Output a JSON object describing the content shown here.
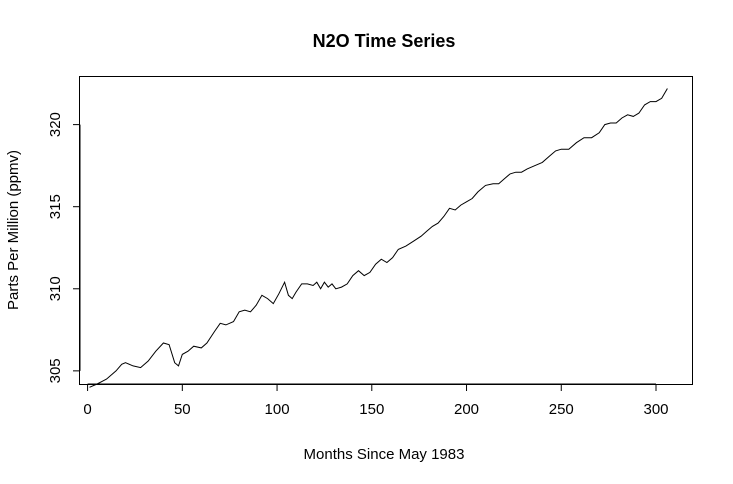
{
  "chart_data": {
    "type": "line",
    "title": "N2O Time Series",
    "xlabel": "Months Since May 1983",
    "ylabel": "Parts Per Million (ppmv)",
    "xlim": [
      -4,
      319
    ],
    "ylim": [
      304.2,
      322.9
    ],
    "xticks": [
      0,
      50,
      100,
      150,
      200,
      250,
      300
    ],
    "yticks": [
      305,
      310,
      315,
      320
    ],
    "grid": false,
    "legend": "none",
    "series": [
      {
        "color": "#000000",
        "points": [
          [
            1,
            304.0
          ],
          [
            5,
            304.2
          ],
          [
            10,
            304.5
          ],
          [
            15,
            305.0
          ],
          [
            18,
            305.4
          ],
          [
            20,
            305.5
          ],
          [
            24,
            305.3
          ],
          [
            28,
            305.2
          ],
          [
            32,
            305.6
          ],
          [
            36,
            306.2
          ],
          [
            40,
            306.7
          ],
          [
            43,
            306.6
          ],
          [
            46,
            305.5
          ],
          [
            48,
            305.3
          ],
          [
            50,
            306.0
          ],
          [
            53,
            306.2
          ],
          [
            56,
            306.5
          ],
          [
            60,
            306.4
          ],
          [
            63,
            306.7
          ],
          [
            67,
            307.4
          ],
          [
            70,
            307.9
          ],
          [
            73,
            307.8
          ],
          [
            77,
            308.0
          ],
          [
            80,
            308.6
          ],
          [
            83,
            308.7
          ],
          [
            86,
            308.6
          ],
          [
            89,
            309.0
          ],
          [
            92,
            309.6
          ],
          [
            95,
            309.4
          ],
          [
            98,
            309.1
          ],
          [
            101,
            309.7
          ],
          [
            104,
            310.4
          ],
          [
            106,
            309.6
          ],
          [
            108,
            309.4
          ],
          [
            110,
            309.8
          ],
          [
            113,
            310.3
          ],
          [
            116,
            310.3
          ],
          [
            119,
            310.2
          ],
          [
            121,
            310.4
          ],
          [
            123,
            310.0
          ],
          [
            125,
            310.4
          ],
          [
            127,
            310.1
          ],
          [
            129,
            310.3
          ],
          [
            131,
            310.0
          ],
          [
            134,
            310.1
          ],
          [
            137,
            310.3
          ],
          [
            140,
            310.8
          ],
          [
            143,
            311.1
          ],
          [
            146,
            310.8
          ],
          [
            149,
            311.0
          ],
          [
            152,
            311.5
          ],
          [
            155,
            311.8
          ],
          [
            158,
            311.6
          ],
          [
            161,
            311.9
          ],
          [
            164,
            312.4
          ],
          [
            168,
            312.6
          ],
          [
            172,
            312.9
          ],
          [
            176,
            313.2
          ],
          [
            179,
            313.5
          ],
          [
            182,
            313.8
          ],
          [
            185,
            314.0
          ],
          [
            188,
            314.4
          ],
          [
            191,
            314.9
          ],
          [
            194,
            314.8
          ],
          [
            197,
            315.1
          ],
          [
            200,
            315.3
          ],
          [
            203,
            315.5
          ],
          [
            206,
            315.9
          ],
          [
            210,
            316.3
          ],
          [
            214,
            316.4
          ],
          [
            217,
            316.4
          ],
          [
            220,
            316.7
          ],
          [
            223,
            317.0
          ],
          [
            226,
            317.1
          ],
          [
            229,
            317.1
          ],
          [
            232,
            317.3
          ],
          [
            236,
            317.5
          ],
          [
            240,
            317.7
          ],
          [
            244,
            318.1
          ],
          [
            247,
            318.4
          ],
          [
            250,
            318.5
          ],
          [
            254,
            318.5
          ],
          [
            258,
            318.9
          ],
          [
            262,
            319.2
          ],
          [
            266,
            319.2
          ],
          [
            270,
            319.5
          ],
          [
            273,
            320.0
          ],
          [
            276,
            320.1
          ],
          [
            279,
            320.1
          ],
          [
            282,
            320.4
          ],
          [
            285,
            320.6
          ],
          [
            288,
            320.5
          ],
          [
            291,
            320.7
          ],
          [
            294,
            321.2
          ],
          [
            297,
            321.4
          ],
          [
            300,
            321.4
          ],
          [
            303,
            321.6
          ],
          [
            306,
            322.2
          ]
        ]
      }
    ]
  }
}
